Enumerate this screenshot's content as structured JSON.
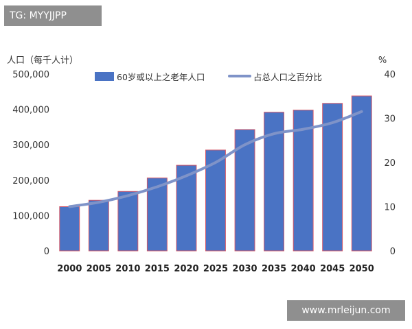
{
  "watermarks": {
    "top_left": "TG: MYYJJPP",
    "bottom_right": "www.mrleijun.com"
  },
  "colors": {
    "bar": "#4a73c4",
    "bar_outline": "#d45a6a",
    "line": "#7f93c8",
    "text": "#333333"
  },
  "chart_data": {
    "type": "bar",
    "categories": [
      "2000",
      "2005",
      "2010",
      "2015",
      "2020",
      "2025",
      "2030",
      "2035",
      "2040",
      "2045",
      "2050"
    ],
    "series": [
      {
        "name": "60岁或以上之老年人口",
        "type": "bar",
        "axis": "left",
        "values": [
          125000,
          143000,
          168000,
          206000,
          242000,
          285000,
          343000,
          392000,
          398000,
          417000,
          438000
        ]
      },
      {
        "name": "占总人口之百分比",
        "type": "line",
        "axis": "right",
        "values": [
          10,
          11,
          12.5,
          14.5,
          17,
          20,
          24,
          26.5,
          27.5,
          29,
          31.5
        ]
      }
    ],
    "ylabel_left": "人口（每千人计）",
    "ylabel_right": "%",
    "ylim_left": [
      0,
      500000
    ],
    "ylim_right": [
      0,
      40
    ],
    "yticks_left": [
      "0",
      "100,000",
      "200,000",
      "300,000",
      "400,000",
      "500,000"
    ],
    "yticks_right": [
      "0",
      "10",
      "20",
      "30",
      "40"
    ],
    "legend_position": "top",
    "grid": false
  }
}
